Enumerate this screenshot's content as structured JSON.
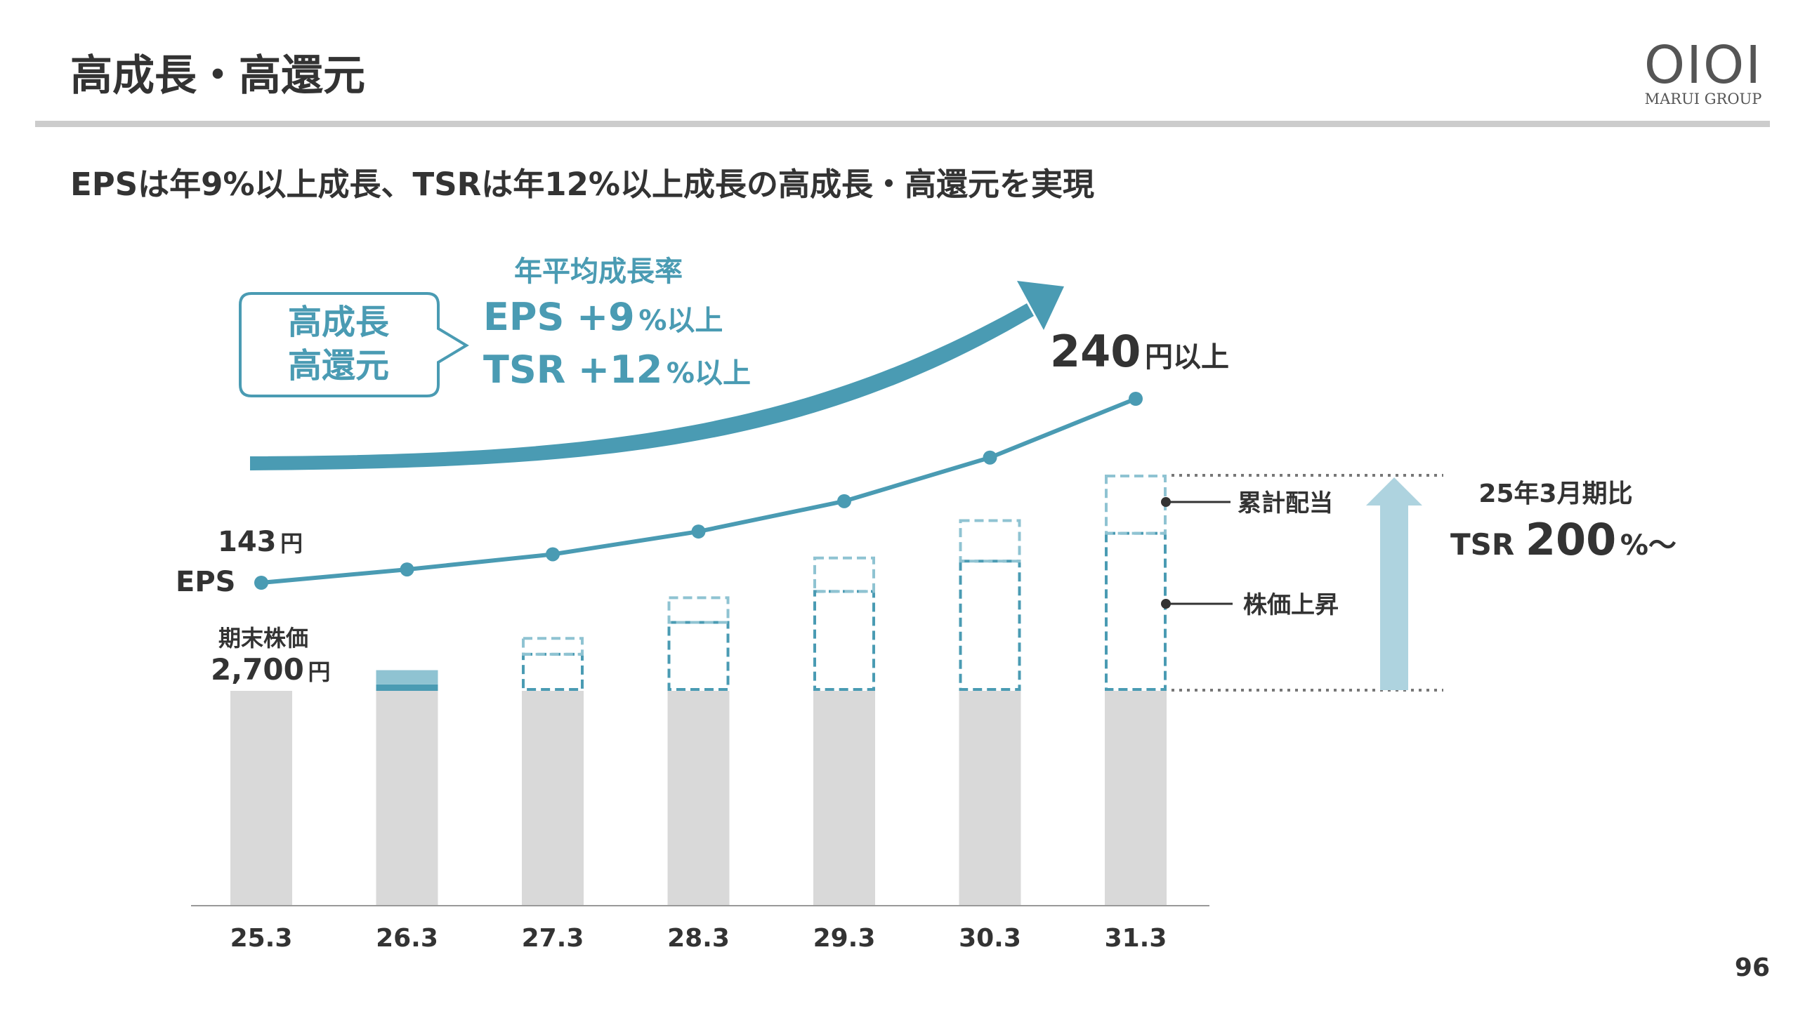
{
  "header": {
    "title": "高成長・高還元",
    "logo_mark": "OIOI",
    "logo_text": "MARUI GROUP"
  },
  "subtitle": "EPSは年9%以上成長、TSRは年12%以上成長の高成長・高還元を実現",
  "callout": {
    "line1": "高成長",
    "line2": "高還元"
  },
  "growth": {
    "heading": "年平均成長率",
    "eps_label": "EPS",
    "eps_value": "+9",
    "eps_unit": "%以上",
    "tsr_label": "TSR",
    "tsr_value": "+12",
    "tsr_unit": "%以上"
  },
  "eps_annotations": {
    "start_value": "143",
    "start_unit": "円",
    "label": "EPS",
    "end_value": "240",
    "end_unit": "円以上"
  },
  "price_annotation": {
    "label": "期末株価",
    "value": "2,700",
    "unit": "円"
  },
  "legend": {
    "dividend": "累計配当",
    "price_rise": "株価上昇"
  },
  "tsr_note": {
    "base": "25年3月期比",
    "label": "TSR",
    "value": "200",
    "unit": "%〜"
  },
  "page_number": "96",
  "colors": {
    "teal": "#4a9bb3",
    "teal_light": "#8fc3d2",
    "arrow_light": "#aed3df",
    "gray_bar": "#d9d9d9",
    "text": "#333333",
    "rule": "#cccccc"
  },
  "chart_data": {
    "type": "bar",
    "title": "",
    "xlabel": "",
    "ylabel": "",
    "categories": [
      "25.3",
      "26.3",
      "27.3",
      "28.3",
      "29.3",
      "30.3",
      "31.3"
    ],
    "ylim": [
      0,
      5400
    ],
    "series": [
      {
        "name": "期末株価",
        "values": [
          2700,
          2700,
          2700,
          2700,
          2700,
          2700,
          2700
        ]
      },
      {
        "name": "株価上昇",
        "values": [
          0,
          80,
          460,
          860,
          1250,
          1630,
          1980
        ]
      },
      {
        "name": "累計配当",
        "values": [
          0,
          180,
          200,
          310,
          420,
          510,
          720
        ]
      }
    ],
    "eps": {
      "name": "EPS",
      "unit": "円",
      "values": [
        143,
        150,
        158,
        170,
        186,
        209,
        240
      ]
    }
  }
}
